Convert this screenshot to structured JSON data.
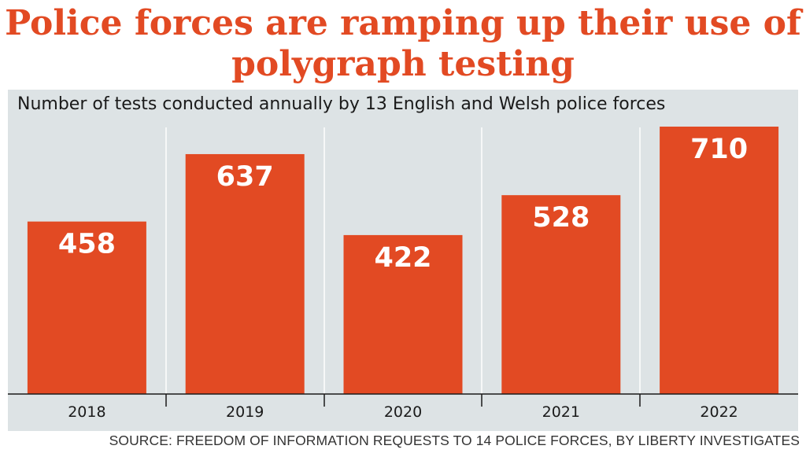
{
  "title": "Police forces are ramping up their use of polygraph testing",
  "subtitle": "Number of tests conducted annually by 13 English and Welsh police forces",
  "source": "SOURCE: FREEDOM OF INFORMATION REQUESTS TO 14 POLICE FORCES, BY LIBERTY INVESTIGATES",
  "colors": {
    "bar": "#e24a23",
    "panel": "#dde3e5",
    "title": "#e24a23",
    "bar_label": "#ffffff"
  },
  "chart_data": {
    "type": "bar",
    "categories": [
      "2018",
      "2019",
      "2020",
      "2021",
      "2022"
    ],
    "values": [
      458,
      637,
      422,
      528,
      710
    ],
    "ylim": [
      0,
      710
    ],
    "grid": true,
    "data_labels": true
  }
}
